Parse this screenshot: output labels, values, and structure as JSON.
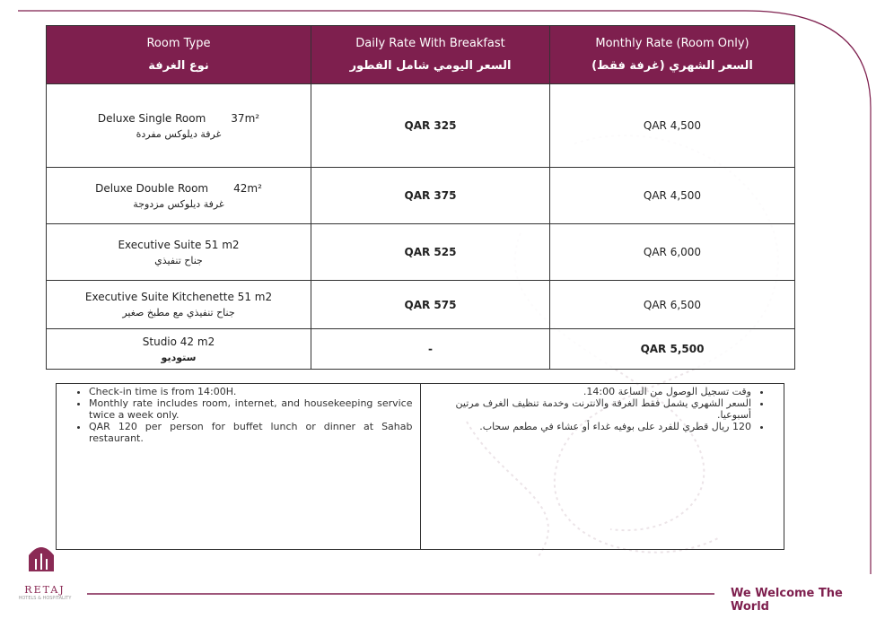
{
  "table": {
    "headers": [
      {
        "en": "Room Type",
        "ar": "نوع الغرفة"
      },
      {
        "en": "Daily Rate With Breakfast",
        "ar": "السعر اليومي  شامل الفطور"
      },
      {
        "en": "Monthly Rate (Room Only)",
        "ar": "السعر الشهري (غرفة فقط)"
      }
    ],
    "rows": [
      {
        "name": "Deluxe Single Room",
        "size": "37m²",
        "name_ar": "غرفة ديلوكس مفردة",
        "daily": "QAR 325",
        "monthly": "QAR 4,500"
      },
      {
        "name": "Deluxe Double Room",
        "size": "42m²",
        "name_ar": "غرفة ديلوكس مزدوجة",
        "daily": "QAR 375",
        "monthly": "QAR 4,500"
      },
      {
        "name": "Executive Suite 51 m2",
        "name_ar": "جناح تنفيذي",
        "daily": "QAR 525",
        "monthly": "QAR 6,000"
      },
      {
        "name": "Executive Suite Kitchenette 51 m2",
        "name_ar": "جناح تنفيذي مع مطبخ صغير",
        "daily": "QAR 575",
        "monthly": "QAR 6,500"
      },
      {
        "name": "Studio  42 m2",
        "name_ar": "ستوديو",
        "daily": "-",
        "monthly": "QAR 5,500"
      }
    ]
  },
  "notes": {
    "en": [
      "Check-in time is from 14:00H.",
      "Monthly rate includes room, internet, and housekeeping service twice a week only.",
      "QAR 120 per person for buffet lunch or dinner at Sahab restaurant."
    ],
    "ar": [
      "وقت تسجيل الوصول من الساعة 14:00.",
      "السعر الشهري يشمل فقط الغرفة والانترنت وخدمة تنظيف الغرف مرتين أسبوعيا.",
      "120 ريال قطري للفرد على بوفيه غداء أو عشاء في مطعم سحاب."
    ]
  },
  "logo": {
    "name": "RETAJ",
    "tagline": "HOTELS & HOSPITALITY"
  },
  "footer": {
    "slogan": "We Welcome The World"
  }
}
